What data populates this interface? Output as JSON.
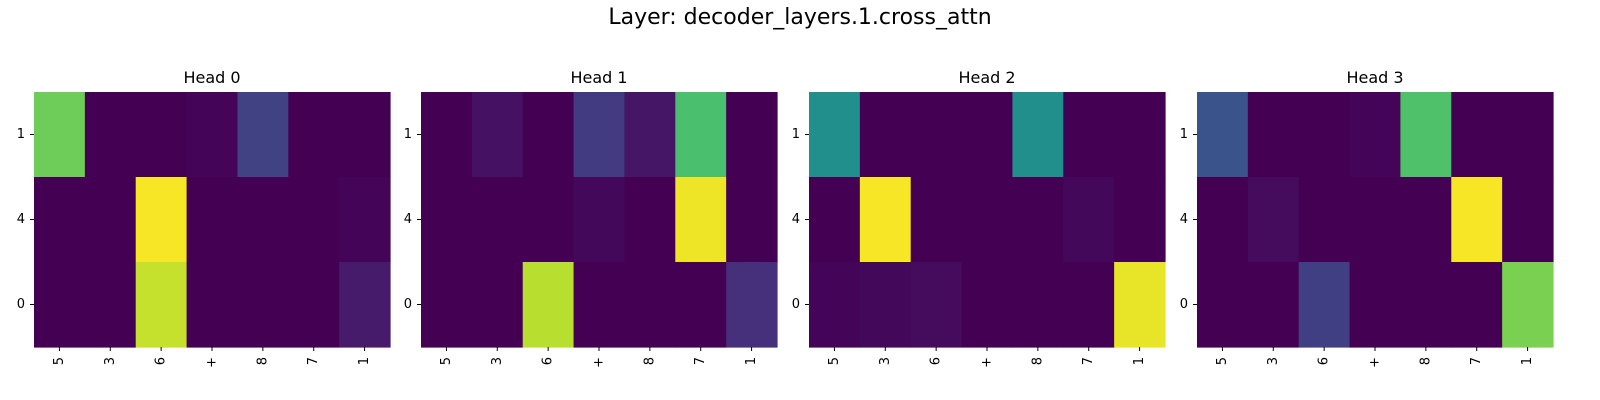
{
  "chart_data": {
    "type": "heatmap",
    "title": "Layer: decoder_layers.1.cross_attn",
    "colormap": "viridis",
    "vmin": 0,
    "vmax": 1,
    "colorbar": false,
    "grid": false,
    "x_tick_labels": [
      "5",
      "3",
      "6",
      "+",
      "8",
      "7",
      "1"
    ],
    "y_tick_labels": [
      "1",
      "4",
      "0"
    ],
    "panels": [
      {
        "title": "Head 0",
        "values": [
          [
            0.78,
            0.0,
            0.0,
            0.01,
            0.2,
            0.0,
            0.0
          ],
          [
            0.0,
            0.0,
            0.99,
            0.0,
            0.0,
            0.0,
            0.01
          ],
          [
            0.0,
            0.0,
            0.92,
            0.0,
            0.0,
            0.0,
            0.08
          ]
        ]
      },
      {
        "title": "Head 1",
        "values": [
          [
            0.0,
            0.05,
            0.0,
            0.18,
            0.06,
            0.71,
            0.0
          ],
          [
            0.0,
            0.0,
            0.0,
            0.02,
            0.0,
            0.98,
            0.0
          ],
          [
            0.0,
            0.0,
            0.9,
            0.0,
            0.0,
            0.0,
            0.14
          ]
        ]
      },
      {
        "title": "Head 2",
        "values": [
          [
            0.5,
            0.0,
            0.0,
            0.0,
            0.5,
            0.0,
            0.0
          ],
          [
            0.0,
            0.99,
            0.0,
            0.0,
            0.0,
            0.02,
            0.0
          ],
          [
            0.01,
            0.02,
            0.03,
            0.0,
            0.0,
            0.0,
            0.97
          ]
        ]
      },
      {
        "title": "Head 3",
        "values": [
          [
            0.26,
            0.0,
            0.0,
            0.01,
            0.72,
            0.0,
            0.0
          ],
          [
            0.0,
            0.03,
            0.0,
            0.0,
            0.0,
            0.99,
            0.0
          ],
          [
            0.0,
            0.0,
            0.19,
            0.0,
            0.0,
            0.0,
            0.8
          ]
        ]
      }
    ]
  }
}
